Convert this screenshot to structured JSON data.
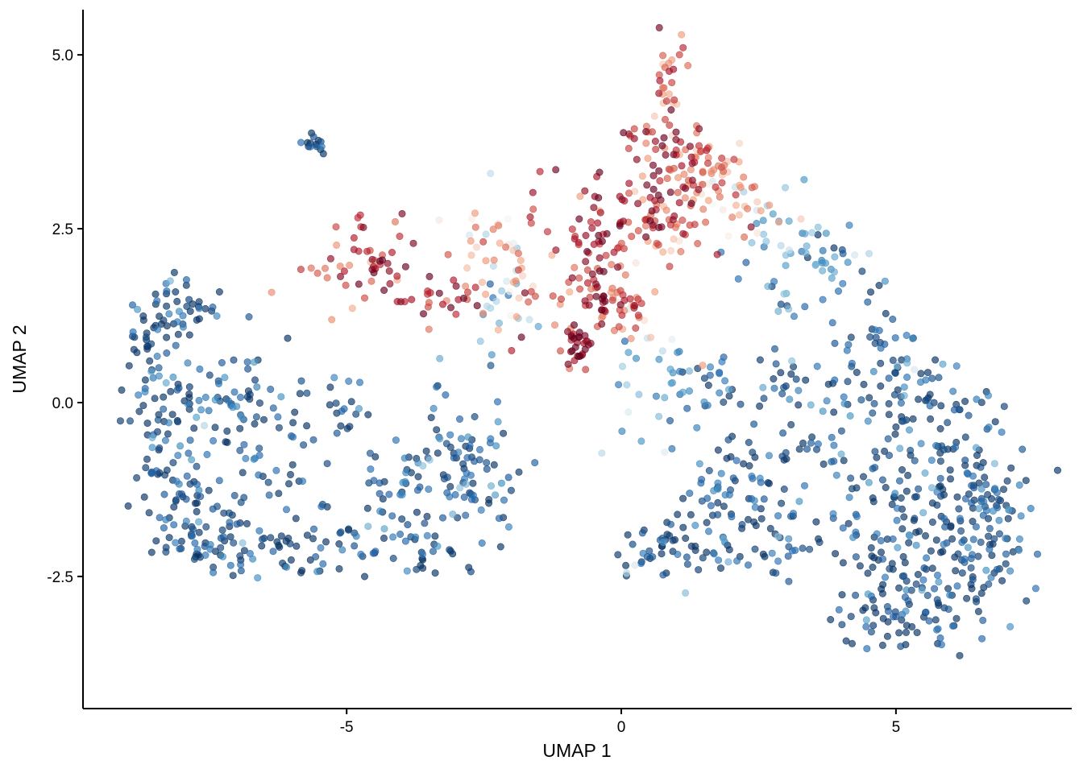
{
  "chart_data": {
    "type": "scatter",
    "title": "",
    "xlabel": "UMAP 1",
    "ylabel": "UMAP 2",
    "xlim": [
      -9.8,
      8.2
    ],
    "ylim": [
      -4.4,
      5.65
    ],
    "xticks": [
      -5,
      0,
      5
    ],
    "xtick_labels": [
      "-5",
      "0",
      "5"
    ],
    "yticks": [
      -2.5,
      0,
      2.5,
      5
    ],
    "ytick_labels": [
      "-2.5",
      "0.0",
      "2.5",
      "5.0"
    ],
    "grid": false,
    "legend": "none",
    "point_opacity": 0.65,
    "color_scale": [
      "#053061",
      "#2166ac",
      "#4393c3",
      "#92c5de",
      "#f7f7f7",
      "#f4a582",
      "#d6604d",
      "#b2182b",
      "#67001f"
    ],
    "clusters": [
      {
        "x": -8.6,
        "y": 0.9,
        "sx": 0.25,
        "sy": 0.35,
        "n": 30,
        "v": -0.95
      },
      {
        "x": -8.0,
        "y": 1.4,
        "sx": 0.35,
        "sy": 0.2,
        "n": 30,
        "v": -0.95
      },
      {
        "x": -8.3,
        "y": -0.2,
        "sx": 0.35,
        "sy": 0.6,
        "n": 70,
        "v": -0.92
      },
      {
        "x": -8.0,
        "y": -1.5,
        "sx": 0.4,
        "sy": 0.4,
        "n": 50,
        "v": -0.92
      },
      {
        "x": -7.4,
        "y": -2.05,
        "sx": 0.45,
        "sy": 0.18,
        "n": 45,
        "v": -0.95
      },
      {
        "x": -7.1,
        "y": 0.1,
        "sx": 0.6,
        "sy": 0.5,
        "n": 50,
        "v": -0.9
      },
      {
        "x": -6.3,
        "y": -0.6,
        "sx": 0.5,
        "sy": 0.5,
        "n": 40,
        "v": -0.9
      },
      {
        "x": -6.1,
        "y": -2.1,
        "sx": 0.6,
        "sy": 0.2,
        "n": 30,
        "v": -0.95
      },
      {
        "x": -5.2,
        "y": -1.9,
        "sx": 0.5,
        "sy": 0.3,
        "n": 20,
        "v": -0.95
      },
      {
        "x": -5.6,
        "y": 3.7,
        "sx": 0.12,
        "sy": 0.1,
        "n": 14,
        "v": -1.0
      },
      {
        "x": -5.0,
        "y": -0.1,
        "sx": 0.2,
        "sy": 0.25,
        "n": 15,
        "v": -0.95
      },
      {
        "x": -4.0,
        "y": -1.5,
        "sx": 0.5,
        "sy": 0.45,
        "n": 45,
        "v": -0.9
      },
      {
        "x": -3.5,
        "y": -2.2,
        "sx": 0.5,
        "sy": 0.12,
        "n": 20,
        "v": -0.95
      },
      {
        "x": -3.0,
        "y": -0.6,
        "sx": 0.4,
        "sy": 0.5,
        "n": 45,
        "v": -0.9
      },
      {
        "x": -2.6,
        "y": -1.3,
        "sx": 0.4,
        "sy": 0.45,
        "n": 45,
        "v": -0.85
      },
      {
        "x": -4.9,
        "y": 2.0,
        "sx": 0.6,
        "sy": 0.35,
        "n": 30,
        "v": 0.55
      },
      {
        "x": -4.4,
        "y": 2.0,
        "sx": 0.35,
        "sy": 0.25,
        "n": 25,
        "v": 0.8
      },
      {
        "x": -3.2,
        "y": 1.6,
        "sx": 0.45,
        "sy": 0.25,
        "n": 25,
        "v": 0.7
      },
      {
        "x": -2.3,
        "y": 2.2,
        "sx": 0.35,
        "sy": 0.35,
        "n": 30,
        "v": 0.2
      },
      {
        "x": -2.2,
        "y": 1.4,
        "sx": 0.35,
        "sy": 0.35,
        "n": 20,
        "v": -0.3
      },
      {
        "x": -1.5,
        "y": 1.6,
        "sx": 0.4,
        "sy": 0.5,
        "n": 25,
        "v": 0.5
      },
      {
        "x": -0.8,
        "y": 0.8,
        "sx": 0.12,
        "sy": 0.15,
        "n": 28,
        "v": 0.95
      },
      {
        "x": -0.4,
        "y": 1.6,
        "sx": 0.35,
        "sy": 0.3,
        "n": 45,
        "v": 0.8
      },
      {
        "x": 0.1,
        "y": 1.3,
        "sx": 0.35,
        "sy": 0.25,
        "n": 30,
        "v": 0.45
      },
      {
        "x": -0.5,
        "y": 2.6,
        "sx": 0.6,
        "sy": 0.35,
        "n": 35,
        "v": 0.8
      },
      {
        "x": 0.4,
        "y": 2.9,
        "sx": 0.55,
        "sy": 0.4,
        "n": 55,
        "v": 0.75
      },
      {
        "x": 0.7,
        "y": 3.7,
        "sx": 0.4,
        "sy": 0.3,
        "n": 30,
        "v": 0.8
      },
      {
        "x": 0.85,
        "y": 4.7,
        "sx": 0.15,
        "sy": 0.35,
        "n": 25,
        "v": 0.4
      },
      {
        "x": 1.5,
        "y": 3.4,
        "sx": 0.4,
        "sy": 0.3,
        "n": 40,
        "v": 0.5
      },
      {
        "x": 2.0,
        "y": 2.9,
        "sx": 0.4,
        "sy": 0.3,
        "n": 35,
        "v": 0.3
      },
      {
        "x": 1.2,
        "y": 2.6,
        "sx": 0.4,
        "sy": 0.3,
        "n": 35,
        "v": 0.45
      },
      {
        "x": 2.8,
        "y": 2.5,
        "sx": 0.35,
        "sy": 0.3,
        "n": 20,
        "v": -0.35
      },
      {
        "x": 3.6,
        "y": 2.0,
        "sx": 0.5,
        "sy": 0.3,
        "n": 30,
        "v": -0.6
      },
      {
        "x": 2.9,
        "y": 1.6,
        "sx": 0.4,
        "sy": 0.25,
        "n": 15,
        "v": -0.65
      },
      {
        "x": 0.9,
        "y": 0.6,
        "sx": 0.45,
        "sy": 0.3,
        "n": 20,
        "v": -0.4
      },
      {
        "x": 1.6,
        "y": 0.2,
        "sx": 0.35,
        "sy": 0.3,
        "n": 20,
        "v": -0.7
      },
      {
        "x": 0.3,
        "y": -0.4,
        "sx": 0.35,
        "sy": 0.4,
        "n": 12,
        "v": -0.4
      },
      {
        "x": 2.9,
        "y": 0.4,
        "sx": 0.3,
        "sy": 0.3,
        "n": 15,
        "v": -0.85
      },
      {
        "x": 0.5,
        "y": -2.1,
        "sx": 0.4,
        "sy": 0.2,
        "n": 25,
        "v": -0.95
      },
      {
        "x": 1.4,
        "y": -2.0,
        "sx": 0.45,
        "sy": 0.35,
        "n": 35,
        "v": -0.92
      },
      {
        "x": 2.0,
        "y": -1.2,
        "sx": 0.5,
        "sy": 0.45,
        "n": 40,
        "v": -0.9
      },
      {
        "x": 2.6,
        "y": -1.9,
        "sx": 0.5,
        "sy": 0.4,
        "n": 35,
        "v": -0.92
      },
      {
        "x": 3.2,
        "y": -0.8,
        "sx": 0.6,
        "sy": 0.6,
        "n": 40,
        "v": -0.9
      },
      {
        "x": 4.1,
        "y": 0.3,
        "sx": 0.4,
        "sy": 0.5,
        "n": 20,
        "v": -0.85
      },
      {
        "x": 4.7,
        "y": 0.7,
        "sx": 0.3,
        "sy": 0.5,
        "n": 30,
        "v": -0.9
      },
      {
        "x": 5.4,
        "y": 0.2,
        "sx": 0.5,
        "sy": 0.4,
        "n": 40,
        "v": -0.92
      },
      {
        "x": 5.8,
        "y": -1.0,
        "sx": 0.7,
        "sy": 0.6,
        "n": 100,
        "v": -0.93
      },
      {
        "x": 6.7,
        "y": -1.6,
        "sx": 0.45,
        "sy": 0.55,
        "n": 70,
        "v": -0.92
      },
      {
        "x": 4.9,
        "y": -1.9,
        "sx": 0.55,
        "sy": 0.5,
        "n": 60,
        "v": -0.93
      },
      {
        "x": 4.6,
        "y": -2.9,
        "sx": 0.45,
        "sy": 0.35,
        "n": 45,
        "v": -0.95
      },
      {
        "x": 5.8,
        "y": -2.9,
        "sx": 0.5,
        "sy": 0.4,
        "n": 45,
        "v": -0.93
      },
      {
        "x": 6.3,
        "y": -2.4,
        "sx": 0.4,
        "sy": 0.5,
        "n": 35,
        "v": -0.92
      }
    ]
  }
}
